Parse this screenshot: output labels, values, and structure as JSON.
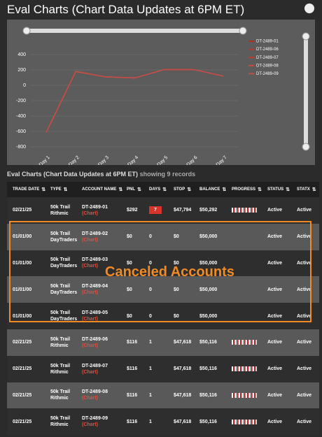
{
  "header": {
    "title": "Eval Charts (Chart Data Updates at 6PM ET)"
  },
  "chart_data": {
    "type": "line",
    "categories": [
      "Day 1",
      "Day 2",
      "Day 3",
      "Day 4",
      "Day 5",
      "Day 6",
      "Day 7"
    ],
    "ylim": [
      -800,
      500
    ],
    "yticks": [
      -800,
      -600,
      -400,
      -200,
      0,
      200,
      400
    ],
    "grid": true,
    "legend": "right",
    "series": [
      {
        "name": "DT-2489-01",
        "color": "#a93226",
        "values": [
          -610,
          180,
          110,
          95,
          205,
          205,
          120
        ]
      },
      {
        "name": "DT-2489-06",
        "color": "#b03a2e",
        "values": [
          -610,
          180,
          110,
          95,
          205,
          205,
          120
        ]
      },
      {
        "name": "DT-2489-07",
        "color": "#c0392b",
        "values": [
          -610,
          180,
          110,
          95,
          205,
          205,
          120
        ]
      },
      {
        "name": "DT-2489-08",
        "color": "#cd4a3e",
        "values": [
          -610,
          180,
          110,
          95,
          205,
          205,
          120
        ]
      },
      {
        "name": "DT-2489-09",
        "color": "#c0504d",
        "values": [
          -610,
          180,
          110,
          95,
          205,
          205,
          120
        ]
      }
    ]
  },
  "table": {
    "caption": "Eval Charts (Chart Data Updates at 6PM ET)",
    "caption_suffix": "showing 9 records",
    "annotation": "Canceled Accounts",
    "columns": [
      "TRADE DATE",
      "TYPE",
      "ACCOUNT NAME",
      "PNL",
      "DAYS",
      "STOP",
      "BALANCE",
      "PROGRESS",
      "STATUS",
      "STATX"
    ],
    "rows": [
      {
        "trade_date": "02/21/25",
        "type": "50k Trail Rithmic",
        "account": "DT-2489-01",
        "link": "(Chart)",
        "pnl": "$292",
        "days": "7",
        "stop": "$47,794",
        "balance": "$50,292",
        "has_progress": true,
        "status": "Active",
        "statx": "Active"
      },
      {
        "trade_date": "01/01/00",
        "type": "50k Trail DayTraders",
        "account": "DT-2489-02",
        "link": "(Chart)",
        "pnl": "$0",
        "days": "0",
        "stop": "$0",
        "balance": "$50,000",
        "has_progress": false,
        "status": "Active",
        "statx": "Active"
      },
      {
        "trade_date": "01/01/00",
        "type": "50k Trail DayTraders",
        "account": "DT-2489-03",
        "link": "(Chart)",
        "pnl": "$0",
        "days": "0",
        "stop": "$0",
        "balance": "$50,000",
        "has_progress": false,
        "status": "Active",
        "statx": "Active"
      },
      {
        "trade_date": "01/01/00",
        "type": "50k Trail DayTraders",
        "account": "DT-2489-04",
        "link": "(Chart)",
        "pnl": "$0",
        "days": "0",
        "stop": "$0",
        "balance": "$50,000",
        "has_progress": false,
        "status": "Active",
        "statx": "Active"
      },
      {
        "trade_date": "01/01/00",
        "type": "50k Trail DayTraders",
        "account": "DT-2489-05",
        "link": "(Chart)",
        "pnl": "$0",
        "days": "0",
        "stop": "$0",
        "balance": "$50,000",
        "has_progress": false,
        "status": "Active",
        "statx": "Active"
      },
      {
        "trade_date": "02/21/25",
        "type": "50k Trail Rithmic",
        "account": "DT-2489-06",
        "link": "(Chart)",
        "pnl": "$116",
        "days": "1",
        "stop": "$47,618",
        "balance": "$50,116",
        "has_progress": true,
        "status": "Active",
        "statx": "Active"
      },
      {
        "trade_date": "02/21/25",
        "type": "50k Trail Rithmic",
        "account": "DT-2489-07",
        "link": "(Chart)",
        "pnl": "$116",
        "days": "1",
        "stop": "$47,618",
        "balance": "$50,116",
        "has_progress": true,
        "status": "Active",
        "statx": "Active"
      },
      {
        "trade_date": "02/21/25",
        "type": "50k Trail Rithmic",
        "account": "DT-2489-08",
        "link": "(Chart)",
        "pnl": "$116",
        "days": "1",
        "stop": "$47,618",
        "balance": "$50,116",
        "has_progress": true,
        "status": "Active",
        "statx": "Active"
      },
      {
        "trade_date": "02/21/25",
        "type": "50k Trail Rithmic",
        "account": "DT-2489-09",
        "link": "(Chart)",
        "pnl": "$116",
        "days": "1",
        "stop": "$47,618",
        "balance": "$50,116",
        "has_progress": true,
        "status": "Active",
        "statx": "Active"
      }
    ]
  }
}
